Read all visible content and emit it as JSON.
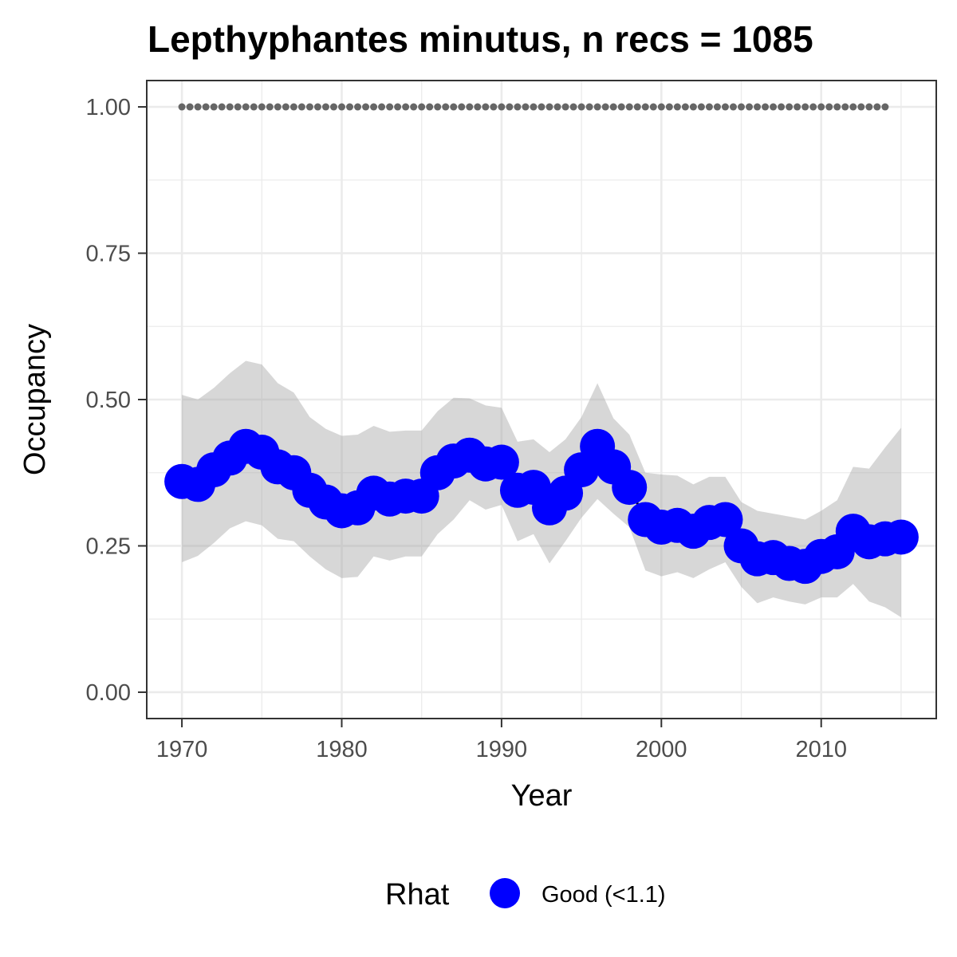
{
  "chart_data": {
    "type": "line",
    "title": "Lepthyphantes minutus, n recs = 1085",
    "xlabel": "Year",
    "ylabel": "Occupancy",
    "xlim": [
      1967.8,
      2017.2
    ],
    "ylim": [
      -0.045,
      1.045
    ],
    "x_ticks": [
      1970,
      1980,
      1990,
      2000,
      2010
    ],
    "y_ticks": [
      0.0,
      0.25,
      0.5,
      0.75,
      1.0
    ],
    "y_tick_labels": [
      "0.00",
      "0.25",
      "0.50",
      "0.75",
      "1.00"
    ],
    "grid": true,
    "legend": {
      "position": "bottom",
      "title": "Rhat",
      "entries": [
        {
          "label": "Good (<1.1)",
          "color": "#0000ff"
        }
      ]
    },
    "years": [
      1970,
      1971,
      1972,
      1973,
      1974,
      1975,
      1976,
      1977,
      1978,
      1979,
      1980,
      1981,
      1982,
      1983,
      1984,
      1985,
      1986,
      1987,
      1988,
      1989,
      1990,
      1991,
      1992,
      1993,
      1994,
      1995,
      1996,
      1997,
      1998,
      1999,
      2000,
      2001,
      2002,
      2003,
      2004,
      2005,
      2006,
      2007,
      2008,
      2009,
      2010,
      2011,
      2012,
      2013,
      2014,
      2015
    ],
    "series": [
      {
        "name": "Good (<1.1)",
        "color": "#0000ff",
        "values": [
          0.36,
          0.355,
          0.38,
          0.4,
          0.42,
          0.41,
          0.385,
          0.375,
          0.345,
          0.325,
          0.31,
          0.315,
          0.34,
          0.33,
          0.335,
          0.335,
          0.375,
          0.395,
          0.405,
          0.39,
          0.393,
          0.345,
          0.35,
          0.315,
          0.34,
          0.38,
          0.42,
          0.385,
          0.35,
          0.295,
          0.282,
          0.285,
          0.275,
          0.29,
          0.295,
          0.25,
          0.228,
          0.23,
          0.22,
          0.215,
          0.232,
          0.24,
          0.275,
          0.257,
          0.262,
          0.265
        ]
      }
    ],
    "ci_lower": [
      0.222,
      0.233,
      0.255,
      0.28,
      0.292,
      0.285,
      0.262,
      0.258,
      0.232,
      0.21,
      0.195,
      0.197,
      0.232,
      0.225,
      0.232,
      0.232,
      0.27,
      0.295,
      0.328,
      0.312,
      0.32,
      0.258,
      0.27,
      0.22,
      0.258,
      0.298,
      0.33,
      0.305,
      0.282,
      0.208,
      0.198,
      0.205,
      0.195,
      0.21,
      0.222,
      0.18,
      0.152,
      0.162,
      0.155,
      0.15,
      0.162,
      0.162,
      0.185,
      0.155,
      0.145,
      0.128
    ],
    "ci_upper": [
      0.508,
      0.5,
      0.52,
      0.545,
      0.566,
      0.56,
      0.528,
      0.512,
      0.47,
      0.45,
      0.438,
      0.44,
      0.455,
      0.445,
      0.447,
      0.447,
      0.48,
      0.503,
      0.502,
      0.49,
      0.486,
      0.428,
      0.432,
      0.41,
      0.432,
      0.47,
      0.528,
      0.468,
      0.44,
      0.375,
      0.372,
      0.37,
      0.355,
      0.368,
      0.368,
      0.325,
      0.31,
      0.305,
      0.3,
      0.295,
      0.31,
      0.328,
      0.385,
      0.382,
      0.418,
      0.452
    ],
    "reference_line": {
      "value": 1.0,
      "style": "dotted",
      "color": "#666666",
      "x_start": 1970,
      "x_end": 2014
    }
  }
}
